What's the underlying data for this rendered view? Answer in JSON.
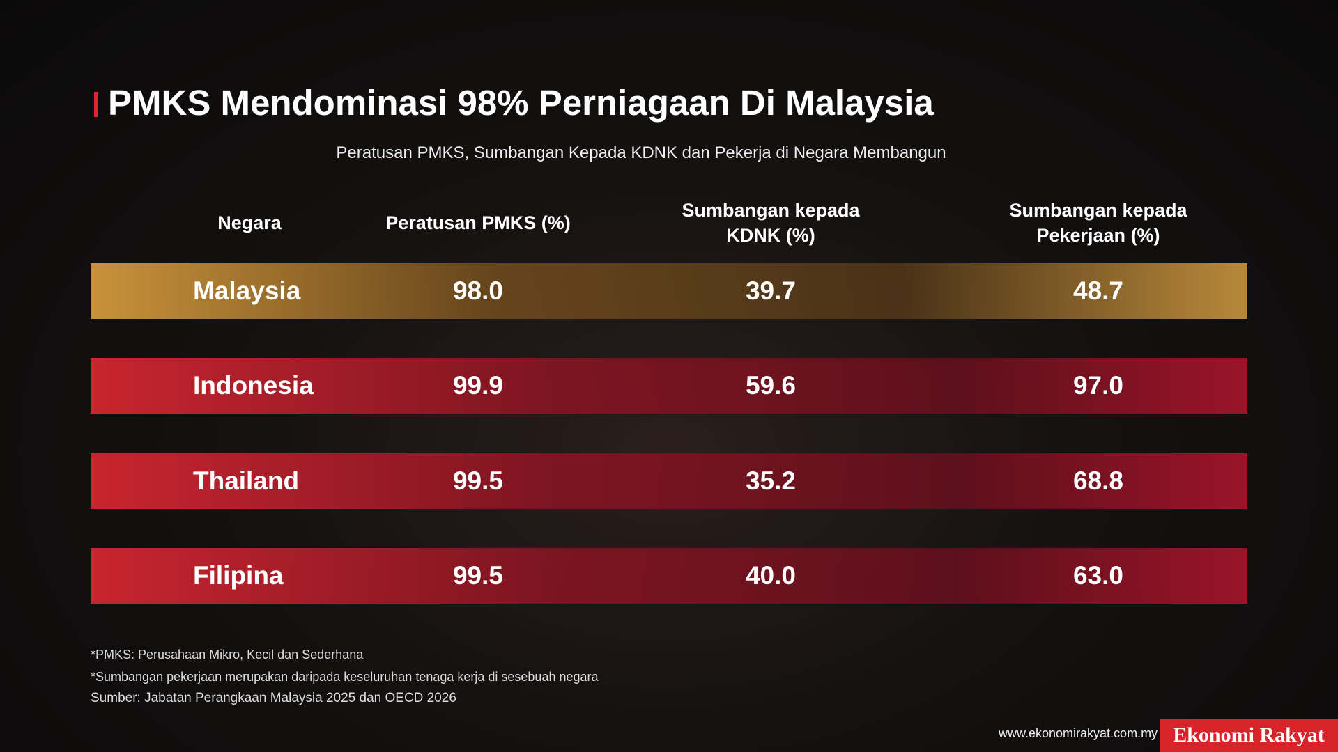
{
  "header": {
    "title": "PMKS Mendominasi 98% Perniagaan Di Malaysia",
    "subtitle": "Peratusan PMKS, Sumbangan Kepada KDNK dan Pekerja di Negara Membangun"
  },
  "table": {
    "headers": [
      "Negara",
      "Peratusan PMKS (%)",
      "Sumbangan kepada KDNK (%)",
      "Sumbangan kepada Pekerjaan (%)"
    ],
    "rows": [
      [
        "Malaysia",
        "98.0",
        "39.7",
        "48.7"
      ],
      [
        "Indonesia",
        "99.9",
        "59.6",
        "97.0"
      ],
      [
        "Thailand",
        "99.5",
        "35.2",
        "68.8"
      ],
      [
        "Filipina",
        "99.5",
        "40.0",
        "63.0"
      ]
    ]
  },
  "footer": {
    "notes": [
      "*PMKS: Perusahaan Mikro, Kecil dan Sederhana",
      "*Sumbangan pekerjaan merupakan daripada keseluruhan tenaga kerja di sesebuah negara"
    ],
    "source": "Sumber: Jabatan Perangkaan Malaysia 2025 dan OECD 2026",
    "website": "www.ekonomirakyat.com.my",
    "brand": "Ekonomi Rakyat"
  }
}
